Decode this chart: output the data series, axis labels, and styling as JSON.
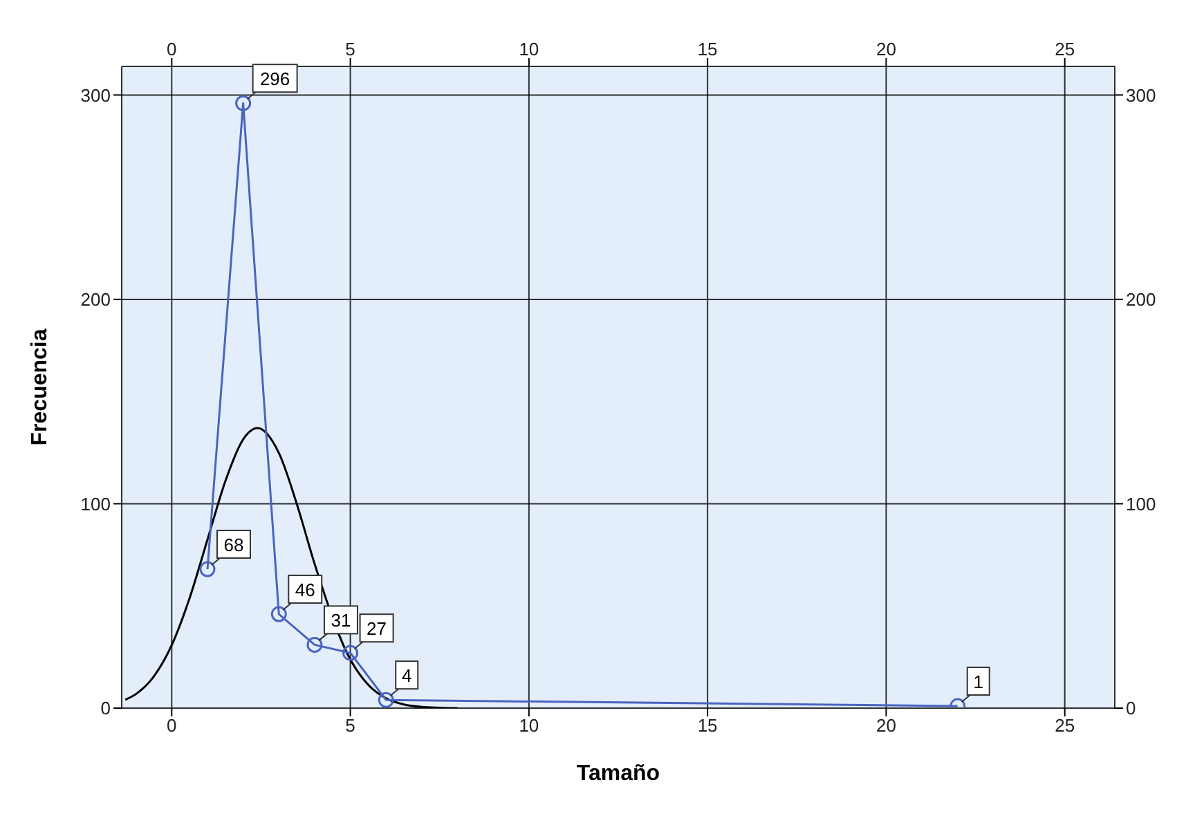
{
  "chart_data": {
    "type": "line",
    "xlabel": "Tamaño",
    "ylabel": "Frecuencia",
    "xlim": [
      -1.4,
      26.4
    ],
    "xticks": [
      0,
      5,
      10,
      15,
      20,
      25
    ],
    "x2lim": [
      -1.4,
      26.4
    ],
    "x2ticks": [
      0,
      5,
      10,
      15,
      20,
      25
    ],
    "ylim": [
      0,
      314
    ],
    "yticks": [
      0,
      100,
      200,
      300
    ],
    "y2lim": [
      0,
      314
    ],
    "y2ticks": [
      0,
      100,
      200,
      300
    ],
    "grid": true,
    "legend": false,
    "series": [
      {
        "type": "line",
        "color": "#4a64c0",
        "marker": "circle",
        "x": [
          1,
          2,
          3,
          4,
          5,
          6,
          22
        ],
        "values": [
          68,
          296,
          46,
          31,
          27,
          4,
          1
        ],
        "value_labels": [
          "68",
          "296",
          "46",
          "31",
          "27",
          "4",
          "1"
        ]
      },
      {
        "type": "line",
        "color": "#000000",
        "marker": "none",
        "x": [
          -1.3,
          -1,
          -0.5,
          0,
          0.5,
          1,
          1.5,
          2,
          2.4,
          3,
          3.5,
          4,
          5,
          5.5,
          6,
          6.5,
          7,
          7.5,
          8
        ],
        "values": [
          4.1,
          6.9,
          15.5,
          30.8,
          53.8,
          82.4,
          111,
          131.5,
          137,
          124.8,
          100,
          70.6,
          23.8,
          11.4,
          4.8,
          1.8,
          0.6,
          0.2,
          0
        ]
      }
    ]
  }
}
